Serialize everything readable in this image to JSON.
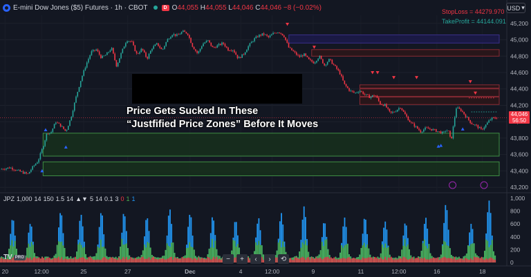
{
  "legend": {
    "symbol": "E-mini Dow Jones ($5) Futures · 1h · CBOT",
    "badge": "D",
    "o_key": "O",
    "o": "44,055",
    "h_key": "H",
    "h": "44,055",
    "l_key": "L",
    "l": "44,046",
    "c_key": "C",
    "c": "44,046",
    "change": "−8 (−0.02%)"
  },
  "currency": "USD",
  "orders": {
    "stop_loss": "StopLoss = 44279.970",
    "take_profit": "TakeProfit = 44144.091"
  },
  "price_tag": {
    "price": "44,046",
    "countdown": "56:50"
  },
  "overlay_text": {
    "line1": "Price Gets Sucked In These",
    "line2": "“Justfified Price Zones” Before It Moves"
  },
  "indicator": {
    "name": "JPZ",
    "params": [
      "1,000",
      "14",
      "150",
      "1.5",
      "14",
      "▲▼",
      "5",
      "14",
      "0.1",
      "3",
      "0",
      "1",
      "1"
    ]
  },
  "toolbar": {
    "minus": "−",
    "plus": "+",
    "left": "‹",
    "right": "›",
    "reset": "⟲"
  },
  "logo": {
    "text": "TV",
    "pro": "PRO"
  },
  "colors": {
    "up": "#26a69a",
    "down": "#f23645",
    "green_zone": "#1b3a1f",
    "red_zone": "#3b1a1f",
    "blue_zone": "#1c1a4a",
    "hist_green": "#4caf50",
    "hist_blue": "#2196f3",
    "hist_red": "#f23645"
  },
  "chart_data": {
    "type": "candlestick",
    "price_axis": {
      "ticks": [
        45200,
        45000,
        44800,
        44600,
        44400,
        44200,
        44000,
        43800,
        43600,
        43400,
        43200
      ],
      "labels": [
        "45,200",
        "45,000",
        "44,800",
        "44,600",
        "44,400",
        "44,200",
        "44,000",
        "43,800",
        "43,600",
        "43,400",
        "43,200"
      ],
      "range": [
        43150,
        45300
      ]
    },
    "indicator_axis": {
      "ticks": [
        1000,
        800,
        600,
        400,
        200,
        0
      ],
      "labels": [
        "1,000",
        "800",
        "600",
        "400",
        "200",
        "0"
      ],
      "range": [
        0,
        1000
      ]
    },
    "time_axis": {
      "labels": [
        "20",
        "12:00",
        "25",
        "27",
        "Dec",
        "4",
        "12:00",
        "9",
        "11",
        "12:00",
        "16",
        "18"
      ],
      "positions": [
        0.01,
        0.082,
        0.165,
        0.252,
        0.375,
        0.475,
        0.537,
        0.618,
        0.712,
        0.787,
        0.862,
        0.952
      ]
    },
    "price_path": [
      [
        0.0,
        43420
      ],
      [
        0.02,
        43440
      ],
      [
        0.04,
        43390
      ],
      [
        0.055,
        43360
      ],
      [
        0.065,
        43450
      ],
      [
        0.075,
        43520
      ],
      [
        0.085,
        43700
      ],
      [
        0.093,
        43870
      ],
      [
        0.1,
        43860
      ],
      [
        0.11,
        44000
      ],
      [
        0.12,
        43950
      ],
      [
        0.13,
        43880
      ],
      [
        0.14,
        44050
      ],
      [
        0.15,
        44300
      ],
      [
        0.16,
        44520
      ],
      [
        0.17,
        44700
      ],
      [
        0.18,
        44850
      ],
      [
        0.19,
        44880
      ],
      [
        0.2,
        44780
      ],
      [
        0.21,
        44820
      ],
      [
        0.22,
        44900
      ],
      [
        0.23,
        44680
      ],
      [
        0.24,
        44850
      ],
      [
        0.25,
        45000
      ],
      [
        0.26,
        44970
      ],
      [
        0.27,
        44820
      ],
      [
        0.28,
        44890
      ],
      [
        0.29,
        44770
      ],
      [
        0.3,
        44900
      ],
      [
        0.31,
        44950
      ],
      [
        0.32,
        44870
      ],
      [
        0.33,
        45000
      ],
      [
        0.34,
        45070
      ],
      [
        0.35,
        45050
      ],
      [
        0.36,
        45100
      ],
      [
        0.37,
        45080
      ],
      [
        0.38,
        44920
      ],
      [
        0.39,
        44830
      ],
      [
        0.4,
        44950
      ],
      [
        0.41,
        44990
      ],
      [
        0.42,
        44900
      ],
      [
        0.43,
        44930
      ],
      [
        0.44,
        44960
      ],
      [
        0.45,
        44880
      ],
      [
        0.46,
        44880
      ],
      [
        0.47,
        44770
      ],
      [
        0.48,
        44820
      ],
      [
        0.49,
        44920
      ],
      [
        0.5,
        45000
      ],
      [
        0.51,
        45050
      ],
      [
        0.52,
        45070
      ],
      [
        0.53,
        45030
      ],
      [
        0.54,
        45080
      ],
      [
        0.55,
        45100
      ],
      [
        0.56,
        45050
      ],
      [
        0.57,
        44900
      ],
      [
        0.58,
        44850
      ],
      [
        0.59,
        44790
      ],
      [
        0.6,
        44820
      ],
      [
        0.61,
        44750
      ],
      [
        0.62,
        44720
      ],
      [
        0.63,
        44800
      ],
      [
        0.64,
        44690
      ],
      [
        0.65,
        44760
      ],
      [
        0.66,
        44680
      ],
      [
        0.67,
        44600
      ],
      [
        0.68,
        44450
      ],
      [
        0.69,
        44380
      ],
      [
        0.7,
        44350
      ],
      [
        0.71,
        44380
      ],
      [
        0.72,
        44330
      ],
      [
        0.73,
        44300
      ],
      [
        0.74,
        44330
      ],
      [
        0.75,
        44220
      ],
      [
        0.76,
        44200
      ],
      [
        0.77,
        44100
      ],
      [
        0.78,
        44130
      ],
      [
        0.79,
        44180
      ],
      [
        0.8,
        44080
      ],
      [
        0.81,
        43990
      ],
      [
        0.82,
        43940
      ],
      [
        0.83,
        43880
      ],
      [
        0.84,
        43920
      ],
      [
        0.85,
        43910
      ],
      [
        0.86,
        43890
      ],
      [
        0.87,
        43870
      ],
      [
        0.875,
        43860
      ],
      [
        0.88,
        43900
      ],
      [
        0.885,
        43880
      ],
      [
        0.89,
        43760
      ],
      [
        0.9,
        44170
      ],
      [
        0.91,
        44140
      ],
      [
        0.92,
        44060
      ],
      [
        0.93,
        43980
      ],
      [
        0.94,
        43950
      ],
      [
        0.95,
        43900
      ],
      [
        0.96,
        43970
      ],
      [
        0.965,
        44010
      ],
      [
        0.97,
        44040
      ],
      [
        0.98,
        44046
      ]
    ],
    "zones": [
      {
        "kind": "blue",
        "x0": 0.57,
        "x1": 0.985,
        "y_hi": 45060,
        "y_lo": 44960
      },
      {
        "kind": "red",
        "x0": 0.615,
        "x1": 0.985,
        "y_hi": 44880,
        "y_lo": 44800
      },
      {
        "kind": "red",
        "x0": 0.71,
        "x1": 0.985,
        "y_hi": 44450,
        "y_lo": 44410
      },
      {
        "kind": "red",
        "x0": 0.71,
        "x1": 0.985,
        "y_hi": 44400,
        "y_lo": 44310
      },
      {
        "kind": "red",
        "x0": 0.71,
        "x1": 0.985,
        "y_hi": 44300,
        "y_lo": 44210
      },
      {
        "kind": "green",
        "x0": 0.085,
        "x1": 0.985,
        "y_hi": 43860,
        "y_lo": 43580
      },
      {
        "kind": "green",
        "x0": 0.085,
        "x1": 0.985,
        "y_hi": 43510,
        "y_lo": 43340
      }
    ],
    "up_arrows": [
      [
        0.083,
        43400
      ],
      [
        0.09,
        43900
      ],
      [
        0.13,
        43690
      ],
      [
        0.865,
        43700
      ],
      [
        0.87,
        43710
      ],
      [
        0.913,
        43910
      ]
    ],
    "down_arrows": [
      [
        0.567,
        45190
      ],
      [
        0.62,
        44910
      ],
      [
        0.735,
        44600
      ],
      [
        0.745,
        44600
      ],
      [
        0.777,
        44540
      ],
      [
        0.822,
        44540
      ],
      [
        0.928,
        44490
      ],
      [
        0.938,
        44350
      ]
    ],
    "hist_peaks": [
      0.025,
      0.06,
      0.12,
      0.16,
      0.2,
      0.245,
      0.29,
      0.335,
      0.375,
      0.42,
      0.465,
      0.51,
      0.555,
      0.6,
      0.64,
      0.68,
      0.72,
      0.76,
      0.8,
      0.84,
      0.88,
      0.93,
      0.965
    ],
    "hist_peak_values": [
      620,
      540,
      730,
      680,
      720,
      700,
      640,
      760,
      690,
      640,
      590,
      620,
      700,
      780,
      560,
      600,
      630,
      570,
      560,
      610,
      820,
      540,
      900
    ]
  }
}
